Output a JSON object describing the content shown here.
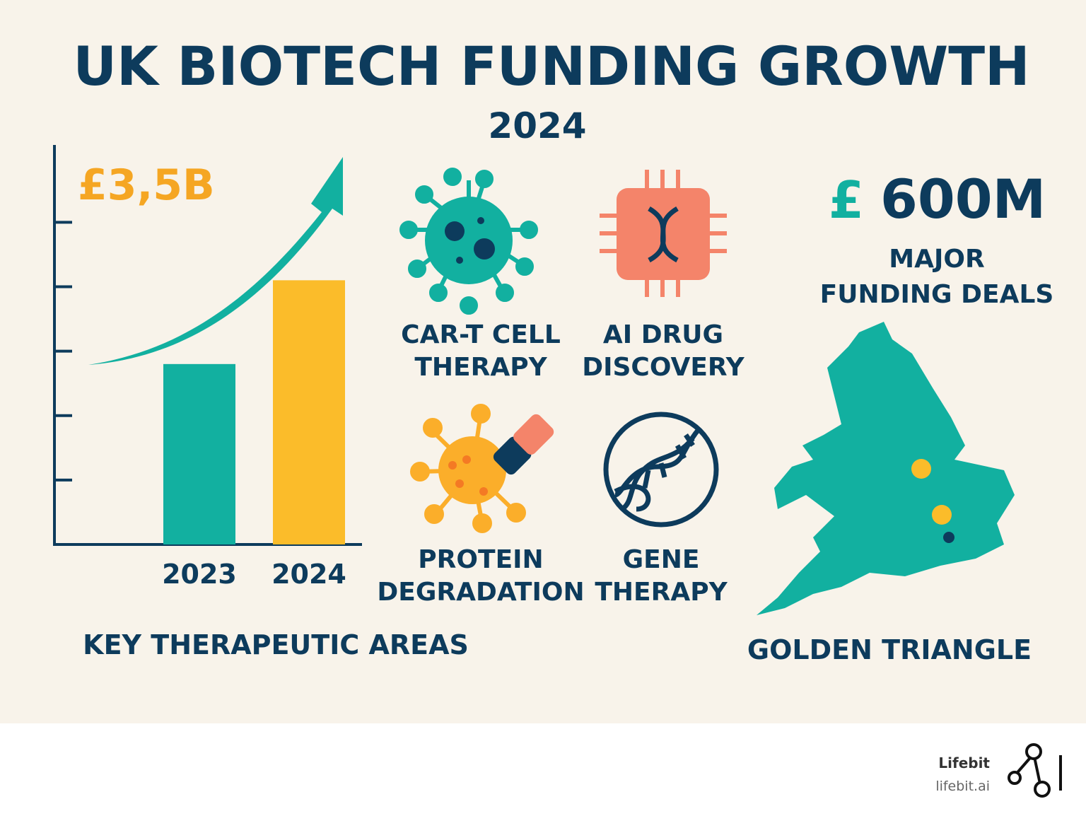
{
  "header": {
    "title": "UK BIOTECH FUNDING GROWTH",
    "subtitle": "2024"
  },
  "funding_chart": {
    "type": "bar",
    "headline": "£3,5B",
    "categories": [
      "2023",
      "2024"
    ],
    "values": [
      2.8,
      4.1
    ],
    "colors": [
      "#12b0a0",
      "#fbbc2a"
    ],
    "ylim": [
      0,
      6.2
    ],
    "yticks": [
      1,
      2,
      3,
      4,
      5
    ]
  },
  "therapeutic_areas": {
    "title": "KEY THERAPEUTIC AREAS",
    "items": [
      {
        "lines": [
          "CAR-T CELL",
          "THERAPY"
        ]
      },
      {
        "lines": [
          "AI DRUG",
          "DISCOVERY"
        ]
      },
      {
        "lines": [
          "PROTEIN",
          "DEGRADATION"
        ]
      },
      {
        "lines": [
          "GENE",
          "THERAPY"
        ]
      }
    ]
  },
  "deals": {
    "currency": "£",
    "amount": "600M",
    "lines": [
      "MAJOR",
      "FUNDING DEALS"
    ]
  },
  "map": {
    "label": "GOLDEN TRIANGLE"
  },
  "footer": {
    "brand": "Lifebit",
    "url": "lifebit.ai"
  }
}
